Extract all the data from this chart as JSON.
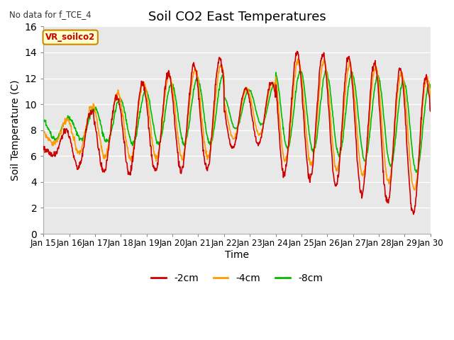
{
  "title": "Soil CO2 East Temperatures",
  "no_data_label": "No data for f_TCE_4",
  "vr_label": "VR_soilco2",
  "xlabel": "Time",
  "ylabel": "Soil Temperature (C)",
  "ylim": [
    0,
    16
  ],
  "xlim": [
    0,
    360
  ],
  "x_tick_labels": [
    "Jan 15",
    "Jan 16",
    "Jan 17",
    "Jan 18",
    "Jan 19",
    "Jan 20",
    "Jan 21",
    "Jan 22",
    "Jan 23",
    "Jan 24",
    "Jan 25",
    "Jan 26",
    "Jan 27",
    "Jan 28",
    "Jan 29",
    "Jan 30"
  ],
  "x_tick_positions": [
    0,
    24,
    48,
    72,
    96,
    120,
    144,
    168,
    192,
    216,
    240,
    264,
    288,
    312,
    336,
    360
  ],
  "colors": {
    "neg2cm": "#cc0000",
    "neg4cm": "#ff9900",
    "neg8cm": "#00bb00"
  },
  "legend_labels": [
    "-2cm",
    "-4cm",
    "-8cm"
  ],
  "fig_bg": "#ffffff",
  "plot_area_bg": "#e8e8e8",
  "grid_color": "#ffffff",
  "title_fontsize": 13,
  "axis_label_fontsize": 10,
  "tick_fontsize": 8.5,
  "line_width": 1.2
}
